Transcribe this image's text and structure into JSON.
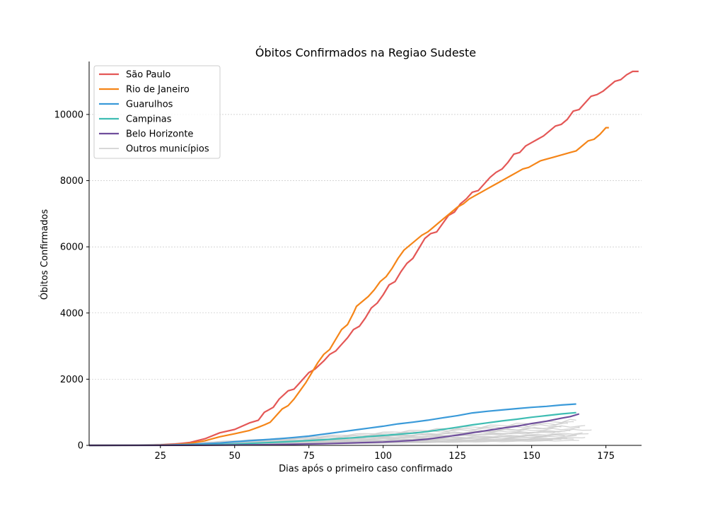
{
  "chart_data": {
    "type": "line",
    "title": "Óbitos Confirmados na Regiao Sudeste",
    "xlabel": "Dias após o primeiro caso confirmado",
    "ylabel": "Óbitos Confirmados",
    "xlim": [
      1,
      187
    ],
    "ylim": [
      0,
      11600
    ],
    "xticks": [
      25,
      50,
      75,
      100,
      125,
      150,
      175
    ],
    "yticks": [
      0,
      2000,
      4000,
      6000,
      8000,
      10000
    ],
    "grid": "horizontal",
    "legend_position": "top-left",
    "series": [
      {
        "name": "São Paulo",
        "color": "#e45756",
        "points": [
          [
            1,
            0
          ],
          [
            20,
            5
          ],
          [
            25,
            15
          ],
          [
            30,
            40
          ],
          [
            35,
            90
          ],
          [
            40,
            200
          ],
          [
            45,
            380
          ],
          [
            50,
            480
          ],
          [
            55,
            680
          ],
          [
            58,
            760
          ],
          [
            60,
            1000
          ],
          [
            63,
            1150
          ],
          [
            65,
            1400
          ],
          [
            68,
            1650
          ],
          [
            70,
            1700
          ],
          [
            72,
            1900
          ],
          [
            75,
            2200
          ],
          [
            77,
            2300
          ],
          [
            80,
            2550
          ],
          [
            82,
            2750
          ],
          [
            84,
            2850
          ],
          [
            86,
            3050
          ],
          [
            88,
            3250
          ],
          [
            90,
            3500
          ],
          [
            92,
            3600
          ],
          [
            94,
            3850
          ],
          [
            96,
            4150
          ],
          [
            98,
            4300
          ],
          [
            100,
            4550
          ],
          [
            102,
            4850
          ],
          [
            104,
            4950
          ],
          [
            106,
            5250
          ],
          [
            108,
            5500
          ],
          [
            110,
            5650
          ],
          [
            112,
            5950
          ],
          [
            114,
            6250
          ],
          [
            116,
            6400
          ],
          [
            118,
            6450
          ],
          [
            120,
            6700
          ],
          [
            122,
            6950
          ],
          [
            124,
            7050
          ],
          [
            126,
            7300
          ],
          [
            128,
            7450
          ],
          [
            130,
            7650
          ],
          [
            132,
            7700
          ],
          [
            134,
            7900
          ],
          [
            136,
            8100
          ],
          [
            138,
            8250
          ],
          [
            140,
            8350
          ],
          [
            142,
            8550
          ],
          [
            144,
            8800
          ],
          [
            146,
            8850
          ],
          [
            148,
            9050
          ],
          [
            150,
            9150
          ],
          [
            152,
            9250
          ],
          [
            154,
            9350
          ],
          [
            156,
            9500
          ],
          [
            158,
            9650
          ],
          [
            160,
            9700
          ],
          [
            162,
            9850
          ],
          [
            164,
            10100
          ],
          [
            166,
            10150
          ],
          [
            168,
            10350
          ],
          [
            170,
            10550
          ],
          [
            172,
            10600
          ],
          [
            174,
            10700
          ],
          [
            176,
            10850
          ],
          [
            178,
            11000
          ],
          [
            180,
            11050
          ],
          [
            182,
            11200
          ],
          [
            184,
            11300
          ],
          [
            186,
            11300
          ]
        ]
      },
      {
        "name": "Rio de Janeiro",
        "color": "#f58518",
        "points": [
          [
            1,
            0
          ],
          [
            20,
            3
          ],
          [
            25,
            8
          ],
          [
            30,
            25
          ],
          [
            35,
            60
          ],
          [
            40,
            140
          ],
          [
            45,
            260
          ],
          [
            50,
            350
          ],
          [
            55,
            450
          ],
          [
            58,
            550
          ],
          [
            60,
            620
          ],
          [
            62,
            700
          ],
          [
            64,
            900
          ],
          [
            66,
            1100
          ],
          [
            68,
            1200
          ],
          [
            70,
            1400
          ],
          [
            72,
            1650
          ],
          [
            74,
            1900
          ],
          [
            76,
            2200
          ],
          [
            78,
            2500
          ],
          [
            80,
            2750
          ],
          [
            82,
            2900
          ],
          [
            84,
            3200
          ],
          [
            86,
            3500
          ],
          [
            88,
            3650
          ],
          [
            90,
            4000
          ],
          [
            91,
            4200
          ],
          [
            93,
            4350
          ],
          [
            95,
            4500
          ],
          [
            97,
            4700
          ],
          [
            99,
            4950
          ],
          [
            101,
            5100
          ],
          [
            103,
            5350
          ],
          [
            105,
            5650
          ],
          [
            107,
            5900
          ],
          [
            109,
            6050
          ],
          [
            111,
            6200
          ],
          [
            113,
            6350
          ],
          [
            115,
            6450
          ],
          [
            117,
            6600
          ],
          [
            119,
            6750
          ],
          [
            121,
            6900
          ],
          [
            123,
            7050
          ],
          [
            125,
            7200
          ],
          [
            127,
            7300
          ],
          [
            129,
            7450
          ],
          [
            131,
            7550
          ],
          [
            133,
            7650
          ],
          [
            135,
            7750
          ],
          [
            137,
            7850
          ],
          [
            139,
            7950
          ],
          [
            141,
            8050
          ],
          [
            143,
            8150
          ],
          [
            145,
            8250
          ],
          [
            147,
            8350
          ],
          [
            149,
            8400
          ],
          [
            151,
            8500
          ],
          [
            153,
            8600
          ],
          [
            155,
            8650
          ],
          [
            157,
            8700
          ],
          [
            159,
            8750
          ],
          [
            161,
            8800
          ],
          [
            163,
            8850
          ],
          [
            165,
            8900
          ],
          [
            167,
            9050
          ],
          [
            169,
            9200
          ],
          [
            171,
            9250
          ],
          [
            173,
            9400
          ],
          [
            175,
            9600
          ],
          [
            176,
            9600
          ]
        ]
      },
      {
        "name": "Guarulhos",
        "color": "#3a9ad9",
        "points": [
          [
            1,
            0
          ],
          [
            25,
            5
          ],
          [
            35,
            30
          ],
          [
            45,
            70
          ],
          [
            50,
            110
          ],
          [
            55,
            140
          ],
          [
            60,
            170
          ],
          [
            65,
            200
          ],
          [
            70,
            240
          ],
          [
            75,
            280
          ],
          [
            80,
            340
          ],
          [
            85,
            400
          ],
          [
            90,
            460
          ],
          [
            95,
            520
          ],
          [
            100,
            580
          ],
          [
            105,
            650
          ],
          [
            110,
            700
          ],
          [
            115,
            760
          ],
          [
            120,
            830
          ],
          [
            125,
            900
          ],
          [
            130,
            980
          ],
          [
            135,
            1030
          ],
          [
            140,
            1070
          ],
          [
            145,
            1110
          ],
          [
            150,
            1150
          ],
          [
            155,
            1180
          ],
          [
            160,
            1220
          ],
          [
            165,
            1250
          ]
        ]
      },
      {
        "name": "Campinas",
        "color": "#3fbdb3",
        "points": [
          [
            1,
            0
          ],
          [
            30,
            3
          ],
          [
            40,
            15
          ],
          [
            50,
            40
          ],
          [
            60,
            80
          ],
          [
            70,
            120
          ],
          [
            80,
            170
          ],
          [
            90,
            230
          ],
          [
            100,
            300
          ],
          [
            110,
            370
          ],
          [
            115,
            420
          ],
          [
            120,
            480
          ],
          [
            125,
            550
          ],
          [
            130,
            620
          ],
          [
            135,
            680
          ],
          [
            140,
            740
          ],
          [
            145,
            790
          ],
          [
            150,
            850
          ],
          [
            155,
            900
          ],
          [
            160,
            950
          ],
          [
            165,
            990
          ]
        ]
      },
      {
        "name": "Belo Horizonte",
        "color": "#6f4e9c",
        "points": [
          [
            1,
            0
          ],
          [
            40,
            5
          ],
          [
            60,
            20
          ],
          [
            80,
            50
          ],
          [
            100,
            100
          ],
          [
            110,
            150
          ],
          [
            115,
            190
          ],
          [
            120,
            250
          ],
          [
            125,
            310
          ],
          [
            130,
            380
          ],
          [
            135,
            450
          ],
          [
            140,
            520
          ],
          [
            145,
            580
          ],
          [
            150,
            660
          ],
          [
            155,
            730
          ],
          [
            160,
            820
          ],
          [
            163,
            870
          ],
          [
            166,
            950
          ]
        ]
      },
      {
        "name": "Outros municípios",
        "color": "#cccccc"
      }
    ],
    "others_finals": [
      [
        165,
        760
      ],
      [
        164,
        700
      ],
      [
        162,
        650
      ],
      [
        168,
        600
      ],
      [
        160,
        560
      ],
      [
        166,
        520
      ],
      [
        170,
        480
      ],
      [
        163,
        440
      ],
      [
        158,
        400
      ],
      [
        167,
        370
      ],
      [
        169,
        340
      ],
      [
        161,
        310
      ],
      [
        165,
        280
      ],
      [
        155,
        260
      ],
      [
        168,
        240
      ],
      [
        162,
        220
      ],
      [
        164,
        200
      ],
      [
        160,
        180
      ],
      [
        157,
        160
      ],
      [
        166,
        150
      ]
    ]
  }
}
